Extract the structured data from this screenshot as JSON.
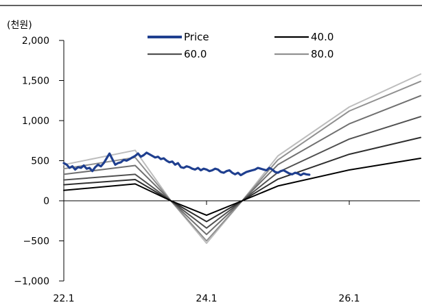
{
  "chart_data": {
    "type": "line",
    "unit_label": "(천원)",
    "ylim": [
      -1000,
      2000
    ],
    "y_ticks": [
      2000,
      1500,
      1000,
      500,
      0,
      -500,
      -1000
    ],
    "y_tick_labels": [
      "2,000",
      "1,500",
      "1,000",
      "500",
      "0",
      "−500",
      "−1,000"
    ],
    "x_ticks": [
      2022.0,
      2024.0,
      2026.0
    ],
    "x_tick_labels": [
      "22.1",
      "24.1",
      "26.1"
    ],
    "xlim": [
      2022.0,
      2027.0
    ],
    "grid": false,
    "legend": {
      "placement": "top"
    },
    "series": [
      {
        "name": "Price",
        "color": "#1f3f8f",
        "kind": "price",
        "x": [
          2022.0,
          2022.04,
          2022.08,
          2022.12,
          2022.16,
          2022.2,
          2022.24,
          2022.28,
          2022.32,
          2022.36,
          2022.4,
          2022.44,
          2022.48,
          2022.52,
          2022.56,
          2022.6,
          2022.64,
          2022.68,
          2022.72,
          2022.76,
          2022.8,
          2022.84,
          2022.88,
          2022.92,
          2022.96,
          2023.0,
          2023.04,
          2023.08,
          2023.12,
          2023.16,
          2023.2,
          2023.24,
          2023.28,
          2023.32,
          2023.36,
          2023.4,
          2023.44,
          2023.48,
          2023.52,
          2023.56,
          2023.6,
          2023.64,
          2023.68,
          2023.72,
          2023.76,
          2023.8,
          2023.84,
          2023.88,
          2023.92,
          2023.96,
          2024.0,
          2024.04,
          2024.08,
          2024.12,
          2024.16,
          2024.2,
          2024.24,
          2024.28,
          2024.32,
          2024.36,
          2024.4,
          2024.44,
          2024.48,
          2024.52,
          2024.56,
          2024.6,
          2024.64,
          2024.68,
          2024.72,
          2024.76,
          2024.8,
          2024.84,
          2024.88,
          2024.92,
          2024.96,
          2025.0,
          2025.04,
          2025.08,
          2025.12,
          2025.16,
          2025.2,
          2025.24,
          2025.28,
          2025.32,
          2025.36,
          2025.4,
          2025.44
        ],
        "values": [
          470,
          450,
          410,
          430,
          390,
          420,
          410,
          440,
          400,
          410,
          370,
          420,
          450,
          430,
          470,
          530,
          590,
          520,
          450,
          470,
          480,
          510,
          500,
          520,
          540,
          560,
          590,
          550,
          570,
          600,
          580,
          560,
          540,
          550,
          520,
          530,
          500,
          480,
          490,
          450,
          470,
          420,
          410,
          430,
          420,
          400,
          390,
          410,
          380,
          400,
          390,
          370,
          380,
          400,
          390,
          360,
          350,
          370,
          380,
          350,
          330,
          350,
          320,
          340,
          360,
          370,
          380,
          390,
          410,
          400,
          390,
          380,
          410,
          390,
          360,
          350,
          370,
          380,
          360,
          340,
          330,
          350,
          340,
          320,
          340,
          330,
          325
        ]
      },
      {
        "name": "40.0",
        "color": "#000000",
        "kind": "target",
        "x": [
          2022.0,
          2023.0,
          2023.5,
          2024.0,
          2024.5,
          2025.0,
          2026.0,
          2027.0
        ],
        "values": [
          130,
          210,
          0,
          -180,
          0,
          185,
          385,
          530
        ]
      },
      {
        "name": "",
        "color": "#2e2e2e",
        "kind": "target",
        "x": [
          2022.0,
          2023.0,
          2023.5,
          2024.0,
          2024.5,
          2025.0,
          2026.0,
          2027.0
        ],
        "values": [
          200,
          265,
          0,
          -260,
          0,
          270,
          580,
          790
        ]
      },
      {
        "name": "60.0",
        "color": "#505050",
        "kind": "target",
        "x": [
          2022.0,
          2023.0,
          2023.5,
          2024.0,
          2024.5,
          2025.0,
          2026.0,
          2027.0
        ],
        "values": [
          260,
          330,
          0,
          -340,
          0,
          355,
          770,
          1050
        ]
      },
      {
        "name": "",
        "color": "#707070",
        "kind": "target",
        "x": [
          2022.0,
          2023.0,
          2023.5,
          2024.0,
          2024.5,
          2025.0,
          2026.0,
          2027.0
        ],
        "values": [
          330,
          440,
          0,
          -420,
          0,
          450,
          960,
          1310
        ]
      },
      {
        "name": "80.0",
        "color": "#909090",
        "kind": "target",
        "x": [
          2022.0,
          2023.0,
          2023.5,
          2024.0,
          2024.5,
          2025.0,
          2026.0,
          2027.0
        ],
        "values": [
          400,
          540,
          0,
          -500,
          0,
          510,
          1120,
          1490
        ]
      },
      {
        "name": "",
        "color": "#bdbdbd",
        "kind": "target",
        "x": [
          2022.0,
          2023.0,
          2023.5,
          2024.0,
          2024.5,
          2025.0,
          2026.0,
          2027.0
        ],
        "values": [
          450,
          630,
          0,
          -530,
          0,
          560,
          1170,
          1580
        ]
      }
    ],
    "legend_entries": [
      {
        "label": "Price",
        "color": "#1f3f8f",
        "thick": true
      },
      {
        "label": "40.0",
        "color": "#000000",
        "thick": false
      },
      {
        "label": "60.0",
        "color": "#505050",
        "thick": false
      },
      {
        "label": "80.0",
        "color": "#909090",
        "thick": false
      }
    ]
  }
}
